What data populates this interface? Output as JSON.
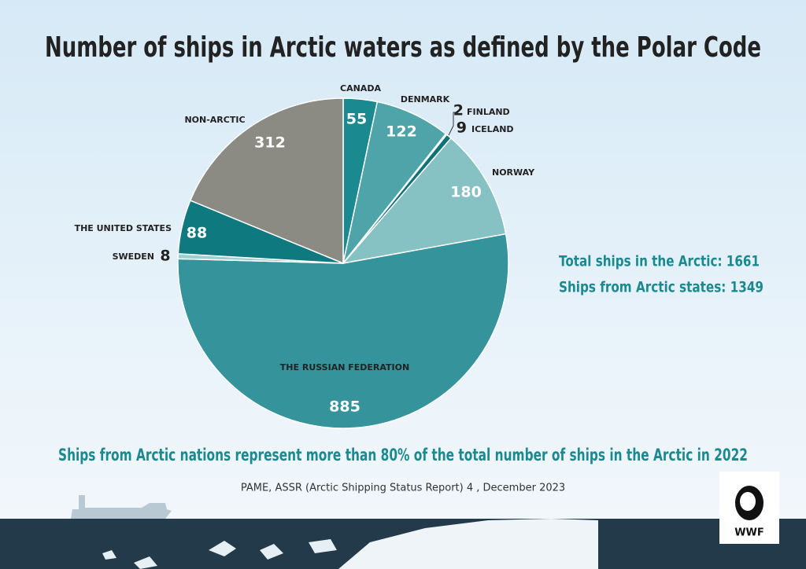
{
  "chart_data": {
    "type": "pie",
    "title": "Number of ships in Arctic waters as defined by the Polar Code",
    "categories": [
      "CANADA",
      "DENMARK",
      "FINLAND",
      "ICELAND",
      "NORWAY",
      "THE RUSSIAN FEDERATION",
      "SWEDEN",
      "THE UNITED STATES",
      "NON-ARCTIC"
    ],
    "values": [
      55,
      122,
      2,
      9,
      180,
      885,
      8,
      88,
      312
    ],
    "colors": [
      "#1b8a90",
      "#4fa4a9",
      "#2a8c92",
      "#0d7379",
      "#86c1c4",
      "#35949b",
      "#9dcfd2",
      "#0e7a80",
      "#8b8a83"
    ],
    "annotations": [
      "Total ships in the Arctic: 1661",
      "Ships from Arctic states: 1349",
      "Ships from Arctic nations represent more than 80% of the total number of ships in the Arctic in 2022"
    ],
    "source": "PAME, ASSR (Arctic Shipping Status Report) 4 , December 2023"
  },
  "logo": "WWF"
}
